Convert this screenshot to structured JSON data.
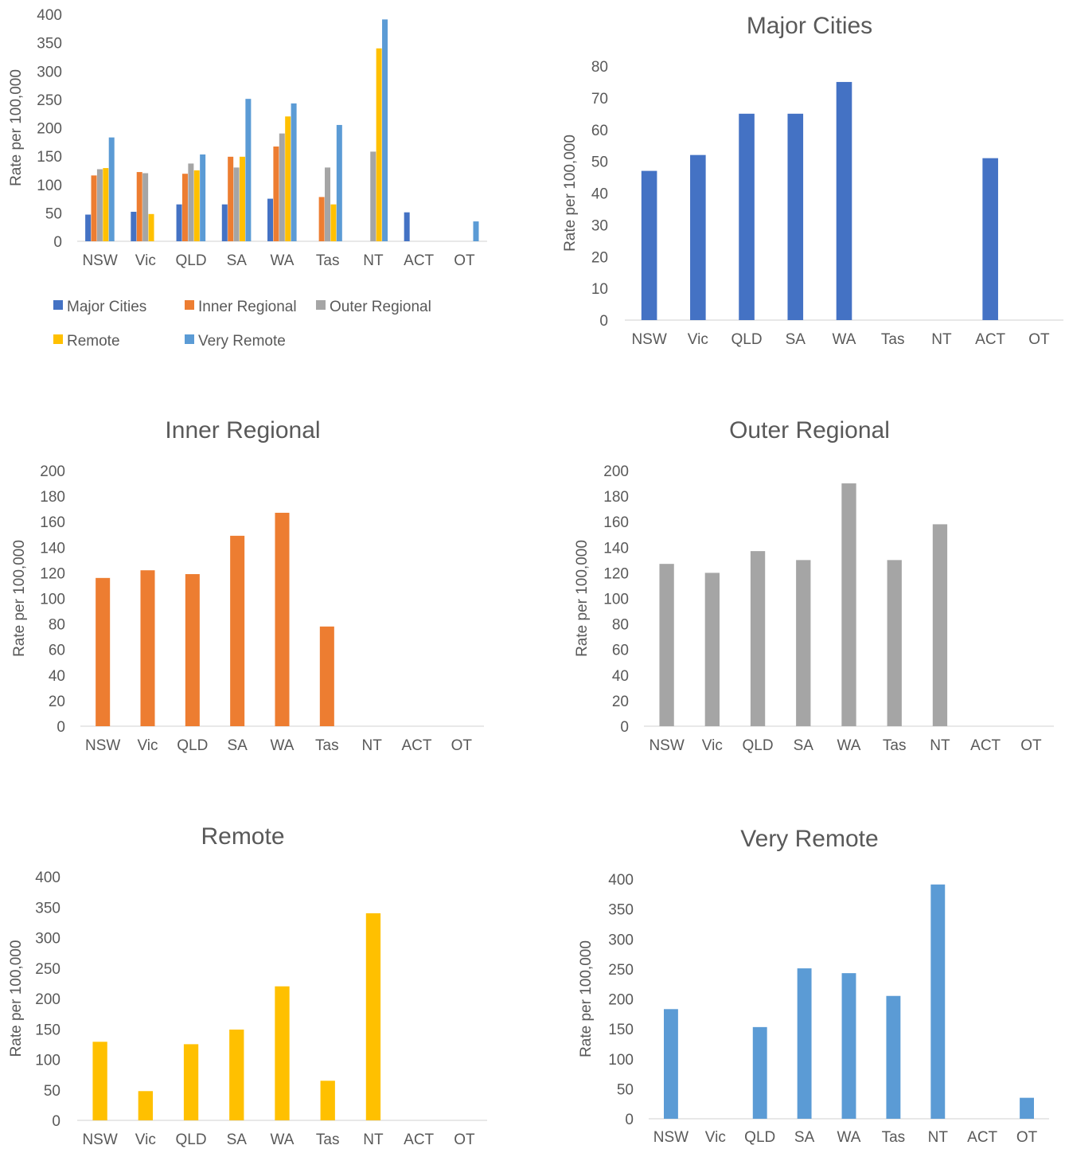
{
  "colors": {
    "major_cities": "#4472C4",
    "inner_regional": "#ED7D31",
    "outer_regional": "#A5A5A5",
    "remote": "#FFC000",
    "very_remote": "#5B9BD5",
    "axis": "#D9D9D9",
    "text": "#595959"
  },
  "chart_data": [
    {
      "id": "combined",
      "type": "bar",
      "title": "",
      "ylabel": "Rate per 100,000",
      "categories": [
        "NSW",
        "Vic",
        "QLD",
        "SA",
        "WA",
        "Tas",
        "NT",
        "ACT",
        "OT"
      ],
      "ylim": [
        0,
        400
      ],
      "yticks": [
        0,
        50,
        100,
        150,
        200,
        250,
        300,
        350,
        400
      ],
      "legend_position": "bottom",
      "series": [
        {
          "name": "Major Cities",
          "color_key": "major_cities",
          "values": [
            47,
            52,
            65,
            65,
            75,
            null,
            null,
            51,
            null
          ]
        },
        {
          "name": "Inner Regional",
          "color_key": "inner_regional",
          "values": [
            116,
            122,
            119,
            149,
            167,
            78,
            null,
            null,
            null
          ]
        },
        {
          "name": "Outer Regional",
          "color_key": "outer_regional",
          "values": [
            127,
            120,
            137,
            130,
            190,
            130,
            158,
            null,
            null
          ]
        },
        {
          "name": "Remote",
          "color_key": "remote",
          "values": [
            129,
            48,
            125,
            149,
            220,
            65,
            340,
            null,
            null
          ]
        },
        {
          "name": "Very Remote",
          "color_key": "very_remote",
          "values": [
            183,
            null,
            153,
            251,
            243,
            205,
            391,
            null,
            35
          ]
        }
      ]
    },
    {
      "id": "major-cities",
      "type": "bar",
      "title": "Major Cities",
      "ylabel": "Rate per 100,000",
      "categories": [
        "NSW",
        "Vic",
        "QLD",
        "SA",
        "WA",
        "Tas",
        "NT",
        "ACT",
        "OT"
      ],
      "ylim": [
        0,
        80
      ],
      "yticks": [
        0,
        10,
        20,
        30,
        40,
        50,
        60,
        70,
        80
      ],
      "series": [
        {
          "color_key": "major_cities",
          "values": [
            47,
            52,
            65,
            65,
            75,
            null,
            null,
            51,
            null
          ]
        }
      ]
    },
    {
      "id": "inner-regional",
      "type": "bar",
      "title": "Inner Regional",
      "ylabel": "Rate per 100,000",
      "categories": [
        "NSW",
        "Vic",
        "QLD",
        "SA",
        "WA",
        "Tas",
        "NT",
        "ACT",
        "OT"
      ],
      "ylim": [
        0,
        200
      ],
      "yticks": [
        0,
        20,
        40,
        60,
        80,
        100,
        120,
        140,
        160,
        180,
        200
      ],
      "series": [
        {
          "color_key": "inner_regional",
          "values": [
            116,
            122,
            119,
            149,
            167,
            78,
            null,
            null,
            null
          ]
        }
      ]
    },
    {
      "id": "outer-regional",
      "type": "bar",
      "title": "Outer Regional",
      "ylabel": "Rate per 100,000",
      "categories": [
        "NSW",
        "Vic",
        "QLD",
        "SA",
        "WA",
        "Tas",
        "NT",
        "ACT",
        "OT"
      ],
      "ylim": [
        0,
        200
      ],
      "yticks": [
        0,
        20,
        40,
        60,
        80,
        100,
        120,
        140,
        160,
        180,
        200
      ],
      "series": [
        {
          "color_key": "outer_regional",
          "values": [
            127,
            120,
            137,
            130,
            190,
            130,
            158,
            null,
            null
          ]
        }
      ]
    },
    {
      "id": "remote",
      "type": "bar",
      "title": "Remote",
      "ylabel": "Rate per 100,000",
      "categories": [
        "NSW",
        "Vic",
        "QLD",
        "SA",
        "WA",
        "Tas",
        "NT",
        "ACT",
        "OT"
      ],
      "ylim": [
        0,
        400
      ],
      "yticks": [
        0,
        50,
        100,
        150,
        200,
        250,
        300,
        350,
        400
      ],
      "series": [
        {
          "color_key": "remote",
          "values": [
            129,
            48,
            125,
            149,
            220,
            65,
            340,
            null,
            null
          ]
        }
      ]
    },
    {
      "id": "very-remote",
      "type": "bar",
      "title": "Very Remote",
      "ylabel": "Rate per 100,000",
      "categories": [
        "NSW",
        "Vic",
        "QLD",
        "SA",
        "WA",
        "Tas",
        "NT",
        "ACT",
        "OT"
      ],
      "ylim": [
        0,
        400
      ],
      "yticks": [
        0,
        50,
        100,
        150,
        200,
        250,
        300,
        350,
        400
      ],
      "series": [
        {
          "color_key": "very_remote",
          "values": [
            183,
            null,
            153,
            251,
            243,
            205,
            391,
            null,
            35
          ]
        }
      ]
    }
  ]
}
